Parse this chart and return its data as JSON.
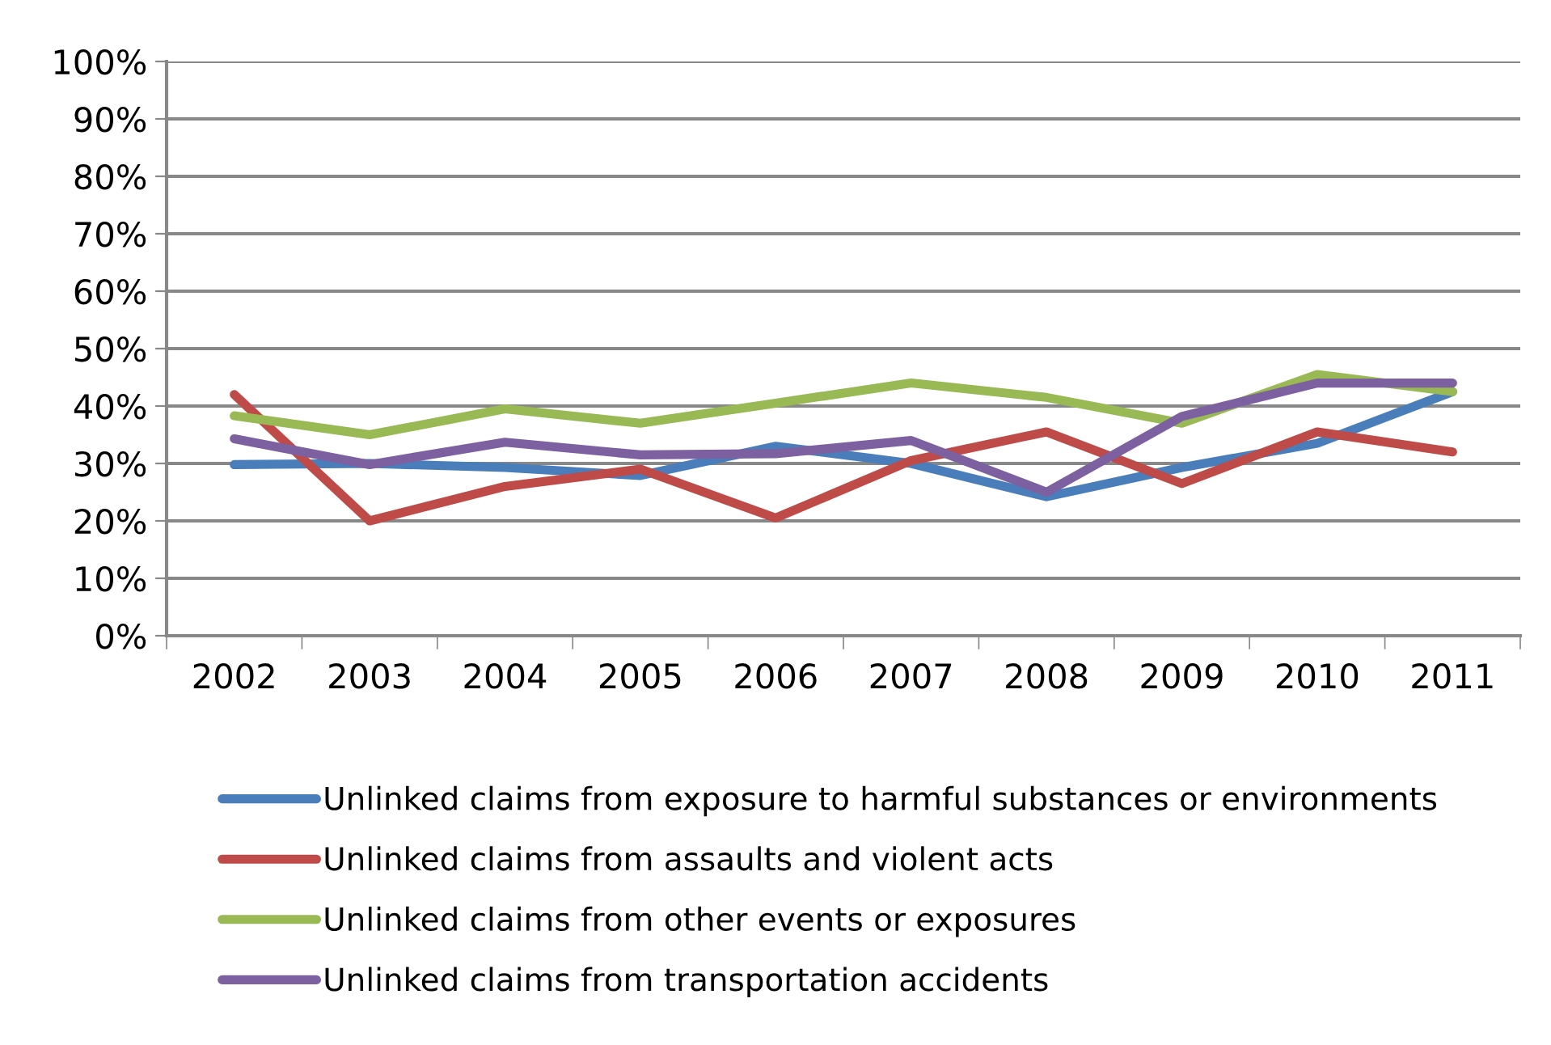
{
  "chart_data": {
    "type": "line",
    "categories": [
      "2002",
      "2003",
      "2004",
      "2005",
      "2006",
      "2007",
      "2008",
      "2009",
      "2010",
      "2011"
    ],
    "series": [
      {
        "name": "Unlinked claims from exposure to harmful substances or environments",
        "color": "#4a7ebb",
        "values": [
          0.298,
          0.3,
          0.293,
          0.279,
          0.33,
          0.3,
          0.242,
          0.293,
          0.335,
          0.425
        ]
      },
      {
        "name": "Unlinked claims from assaults and violent acts",
        "color": "#be4b48",
        "values": [
          0.42,
          0.2,
          0.26,
          0.29,
          0.205,
          0.305,
          0.355,
          0.265,
          0.355,
          0.32
        ]
      },
      {
        "name": "Unlinked claims from other events or exposures",
        "color": "#98b954",
        "values": [
          0.383,
          0.35,
          0.395,
          0.37,
          0.405,
          0.44,
          0.415,
          0.37,
          0.455,
          0.425
        ]
      },
      {
        "name": "Unlinked claims from transportation accidents",
        "color": "#7d60a0",
        "values": [
          0.343,
          0.298,
          0.337,
          0.315,
          0.317,
          0.34,
          0.25,
          0.382,
          0.44,
          0.44
        ]
      }
    ],
    "ylim": [
      0,
      1
    ],
    "yticks": [
      {
        "value": 0,
        "label": "0%"
      },
      {
        "value": 0.1,
        "label": "10%"
      },
      {
        "value": 0.2,
        "label": "20%"
      },
      {
        "value": 0.3,
        "label": "30%"
      },
      {
        "value": 0.4,
        "label": "40%"
      },
      {
        "value": 0.5,
        "label": "50%"
      },
      {
        "value": 0.6,
        "label": "60%"
      },
      {
        "value": 0.7,
        "label": "70%"
      },
      {
        "value": 0.8,
        "label": "80%"
      },
      {
        "value": 0.9,
        "label": "90%"
      },
      {
        "value": 1,
        "label": "100%"
      }
    ],
    "grid": "y",
    "legend": "bottom",
    "marker": "none",
    "line_style": "solid"
  }
}
